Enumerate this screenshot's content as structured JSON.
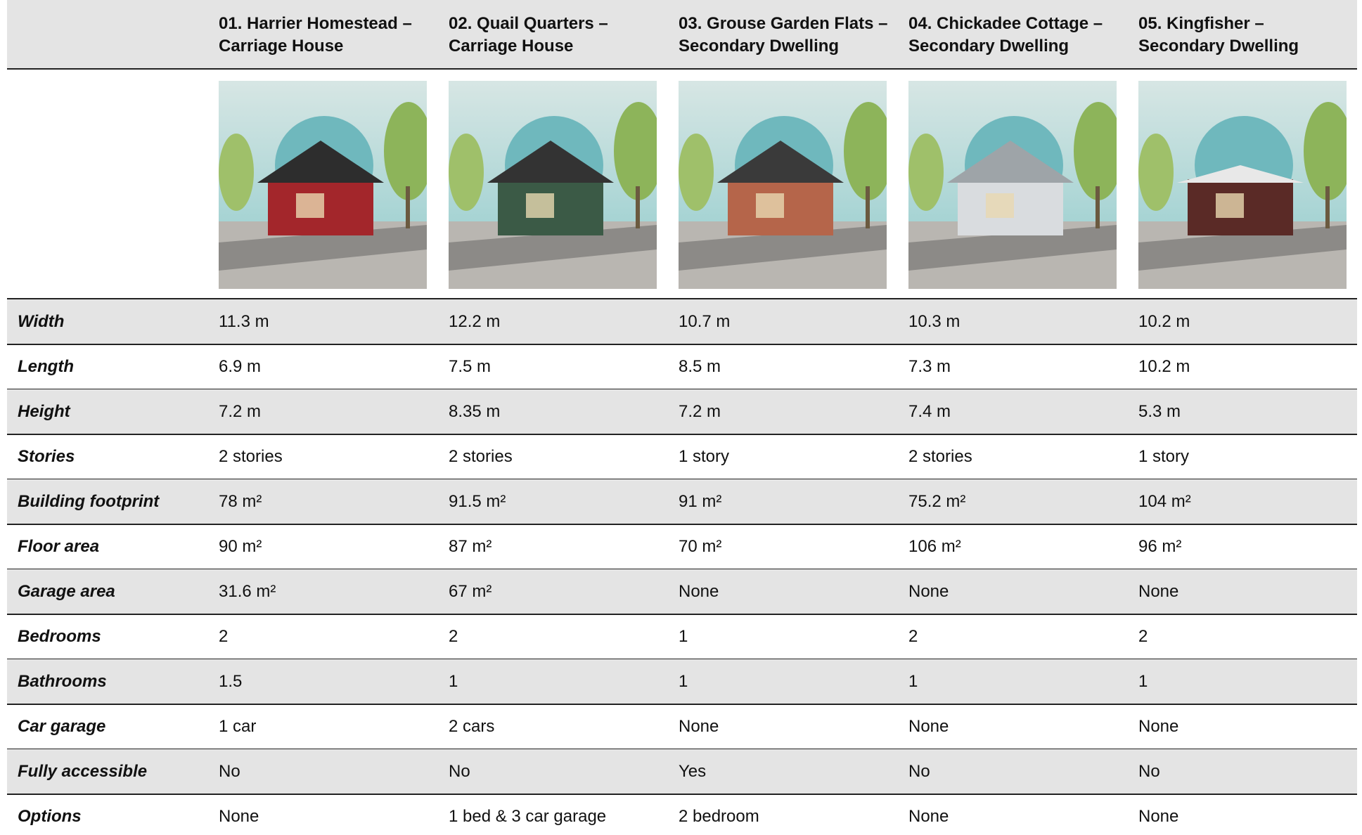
{
  "columns": [
    "01. Harrier Homestead – Carriage House",
    "02. Quail Quarters – Carriage House",
    "03. Grouse Garden Flats – Secondary Dwelling",
    "04. Chickadee Cottage – Secondary Dwelling",
    "05. Kingfisher – Secondary Dwelling"
  ],
  "rows": [
    {
      "label": "Width",
      "values": [
        "11.3 m",
        "12.2 m",
        "10.7 m",
        "10.3 m",
        "10.2 m"
      ]
    },
    {
      "label": "Length",
      "values": [
        "6.9 m",
        "7.5 m",
        "8.5 m",
        "7.3 m",
        "10.2 m"
      ]
    },
    {
      "label": "Height",
      "values": [
        "7.2 m",
        "8.35 m",
        "7.2 m",
        "7.4 m",
        "5.3 m"
      ]
    },
    {
      "label": "Stories",
      "values": [
        "2 stories",
        "2 stories",
        "1 story",
        "2 stories",
        "1 story"
      ]
    },
    {
      "label": "Building footprint",
      "values": [
        "78 m²",
        "91.5 m²",
        "91 m²",
        "75.2 m²",
        "104 m²"
      ]
    },
    {
      "label": "Floor area",
      "values": [
        "90 m²",
        "87 m²",
        "70 m²",
        "106 m²",
        "96 m²"
      ]
    },
    {
      "label": "Garage area",
      "values": [
        "31.6 m²",
        "67 m²",
        "None",
        "None",
        "None"
      ]
    },
    {
      "label": "Bedrooms",
      "values": [
        "2",
        "2",
        "1",
        "2",
        "2"
      ]
    },
    {
      "label": "Bathrooms",
      "values": [
        "1.5",
        "1",
        "1",
        "1",
        "1"
      ]
    },
    {
      "label": "Car garage",
      "values": [
        "1 car",
        "2 cars",
        "None",
        "None",
        "None"
      ]
    },
    {
      "label": "Fully accessible",
      "values": [
        "No",
        "No",
        "Yes",
        "No",
        "No"
      ]
    },
    {
      "label": "Options",
      "values": [
        "None",
        "1 bed & 3 car garage",
        "2 bedroom",
        "None",
        "None"
      ]
    }
  ]
}
